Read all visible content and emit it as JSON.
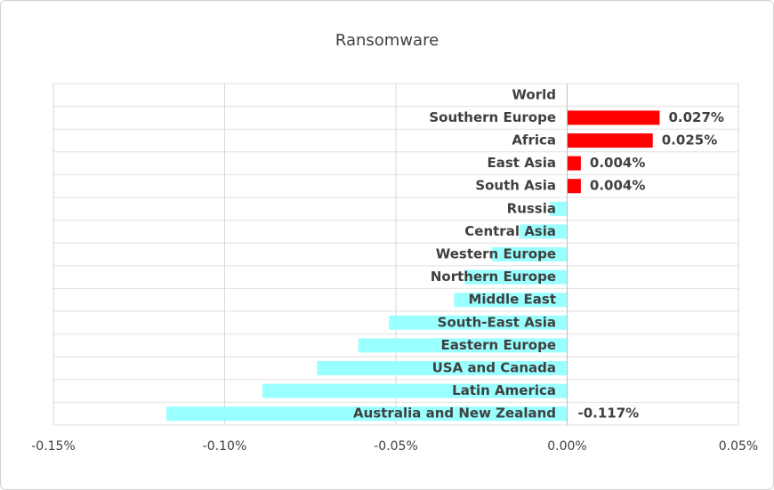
{
  "chart_data": {
    "type": "bar",
    "orientation": "horizontal",
    "title": "Ransomware",
    "categories": [
      "World",
      "Southern Europe",
      "Africa",
      "East Asia",
      "South Asia",
      "Russia",
      "Central Asia",
      "Western Europe",
      "Northern Europe",
      "Middle East",
      "South-East Asia",
      "Eastern Europe",
      "USA and Canada",
      "Latin America",
      "Australia and New Zealand"
    ],
    "values": [
      0,
      0.027,
      0.025,
      0.004,
      0.004,
      -0.005,
      -0.014,
      -0.022,
      -0.03,
      -0.033,
      -0.052,
      -0.061,
      -0.073,
      -0.089,
      -0.117
    ],
    "value_labels": [
      null,
      "0.027%",
      "0.025%",
      "0.004%",
      "0.004%",
      null,
      null,
      null,
      null,
      null,
      null,
      null,
      null,
      null,
      "-0.117%"
    ],
    "color_positive": "#ff0000",
    "color_negative": "#99ffff",
    "xlim": [
      -0.15,
      0.05
    ],
    "xticks": [
      {
        "value": -0.15,
        "label": "-0.15%"
      },
      {
        "value": -0.1,
        "label": "-0.10%"
      },
      {
        "value": -0.05,
        "label": "-0.05%"
      },
      {
        "value": 0,
        "label": "0.00%"
      },
      {
        "value": 0.05,
        "label": "0.05%"
      }
    ],
    "grid": true
  }
}
